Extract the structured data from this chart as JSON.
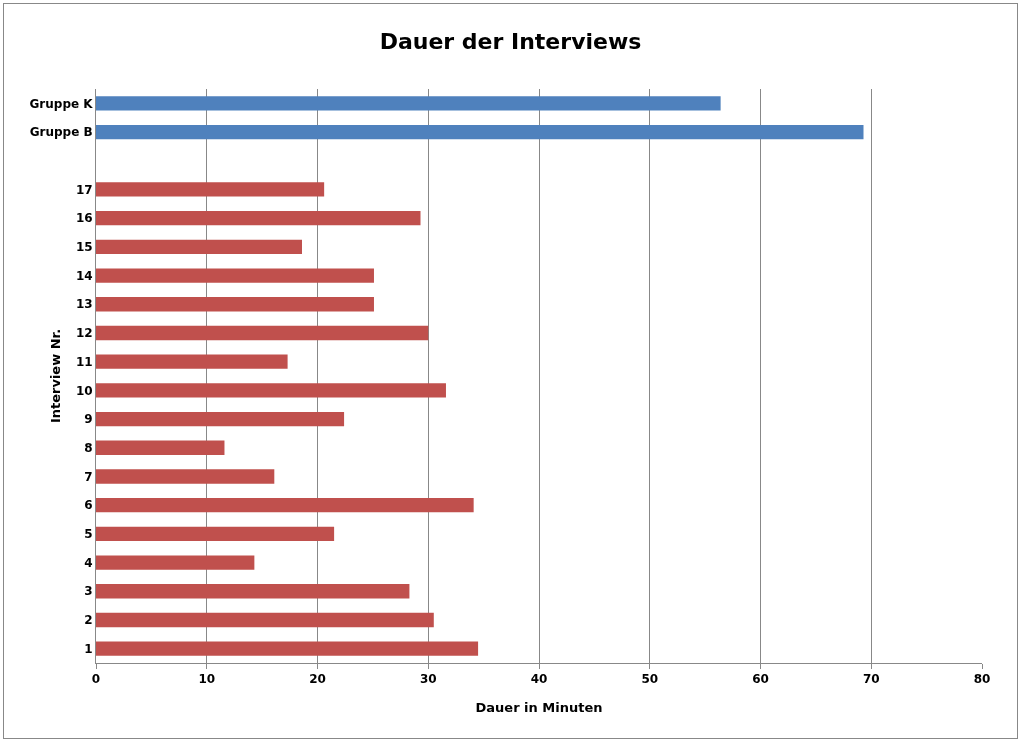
{
  "chart_data": {
    "type": "bar",
    "orientation": "horizontal",
    "title": "Dauer der Interviews",
    "xlabel": "Dauer in Minuten",
    "ylabel": "Interview Nr.",
    "categories": [
      "Gruppe K",
      "Gruppe B",
      null,
      "17",
      "16",
      "15",
      "14",
      "13",
      "12",
      "11",
      "10",
      "9",
      "8",
      "7",
      "6",
      "5",
      "4",
      "3",
      "2",
      "1"
    ],
    "values": [
      56.4,
      69.3,
      null,
      20.6,
      29.3,
      18.6,
      25.1,
      25.1,
      30.0,
      17.3,
      31.6,
      22.4,
      11.6,
      16.1,
      34.1,
      21.5,
      14.3,
      28.3,
      30.5,
      34.5
    ],
    "colors": [
      "#4f81bd",
      "#4f81bd",
      null,
      "#c0504d",
      "#c0504d",
      "#c0504d",
      "#c0504d",
      "#c0504d",
      "#c0504d",
      "#c0504d",
      "#c0504d",
      "#c0504d",
      "#c0504d",
      "#c0504d",
      "#c0504d",
      "#c0504d",
      "#c0504d",
      "#c0504d",
      "#c0504d",
      "#c0504d"
    ],
    "xlim": [
      0,
      80
    ],
    "xticks": [
      0,
      10,
      20,
      30,
      40,
      50,
      60,
      70,
      80
    ],
    "grid": "x"
  }
}
